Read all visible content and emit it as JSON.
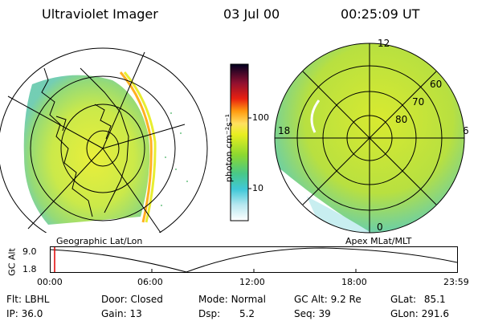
{
  "header": {
    "instrument": "Ultraviolet Imager",
    "date": "03 Jul 00",
    "time": "00:25:09 UT"
  },
  "colorbar": {
    "unit_label": "photon cm⁻²s⁻¹",
    "ticks": [
      "100",
      "10"
    ]
  },
  "polar_plot": {
    "mlt_labels": {
      "top": "12",
      "left": "18",
      "right": "6",
      "bottom": "0"
    },
    "lat_labels": [
      "60",
      "70",
      "80"
    ]
  },
  "map_labels": {
    "left": "Geographic Lat/Lon",
    "right": "Apex MLat/MLT"
  },
  "altitude_plot": {
    "ylabel": "GC Alt",
    "y_ticks": [
      "9.0",
      "1.8"
    ],
    "x_ticks": [
      "00:00",
      "06:00",
      "12:00",
      "18:00",
      "23:59"
    ]
  },
  "info": {
    "row1": [
      {
        "label": "Flt:",
        "value": "LBHL"
      },
      {
        "label": "Door:",
        "value": "Closed"
      },
      {
        "label": "Mode:",
        "value": "Normal"
      },
      {
        "label": "GC Alt:",
        "value": "9.2 Re"
      },
      {
        "label": "GLat:",
        "value": "85.1"
      }
    ],
    "row2": [
      {
        "label": "IP:",
        "value": "36.0"
      },
      {
        "label": "Gain:",
        "value": "13"
      },
      {
        "label": "Dsp:",
        "value": "5.2"
      },
      {
        "label": "Seq:",
        "value": "39"
      },
      {
        "label": "GLon:",
        "value": "291.6"
      }
    ]
  }
}
